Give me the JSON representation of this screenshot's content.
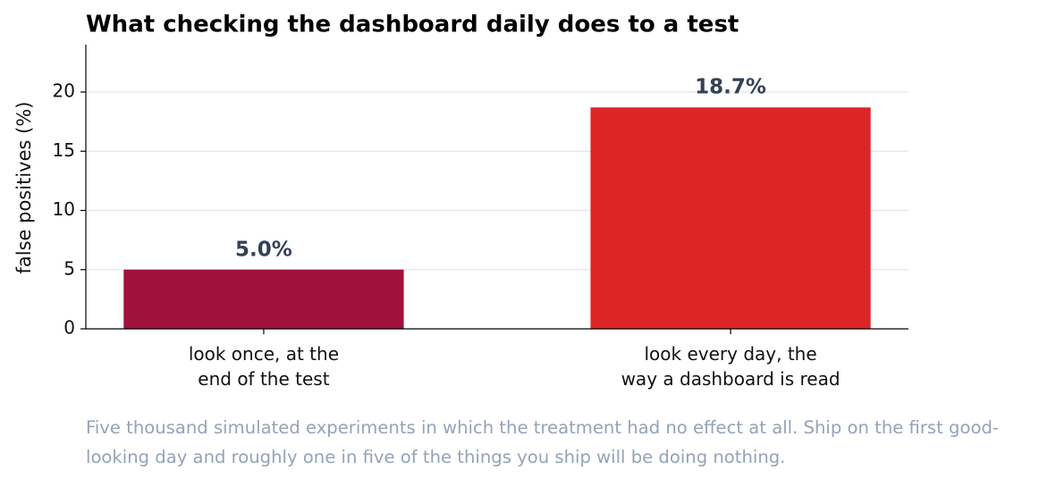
{
  "chart_data": {
    "type": "bar",
    "title": "What checking the dashboard daily does to a test",
    "y_label": "false positives (%)",
    "categories": [
      "look once, at the\nend of the test",
      "look every day, the\nway a dashboard is read"
    ],
    "values": [
      5.0,
      18.7
    ],
    "value_labels": [
      "5.0%",
      "18.7%"
    ],
    "colors": [
      "#a0123b",
      "#dc2626"
    ],
    "ylim": [
      0,
      24
    ],
    "yticks": [
      0,
      5,
      10,
      15,
      20
    ],
    "grid": true,
    "caption": "Five thousand simulated experiments in which the treatment had no effect at all. Ship on the first good-looking day and roughly one in five of the things you ship will be doing nothing."
  }
}
